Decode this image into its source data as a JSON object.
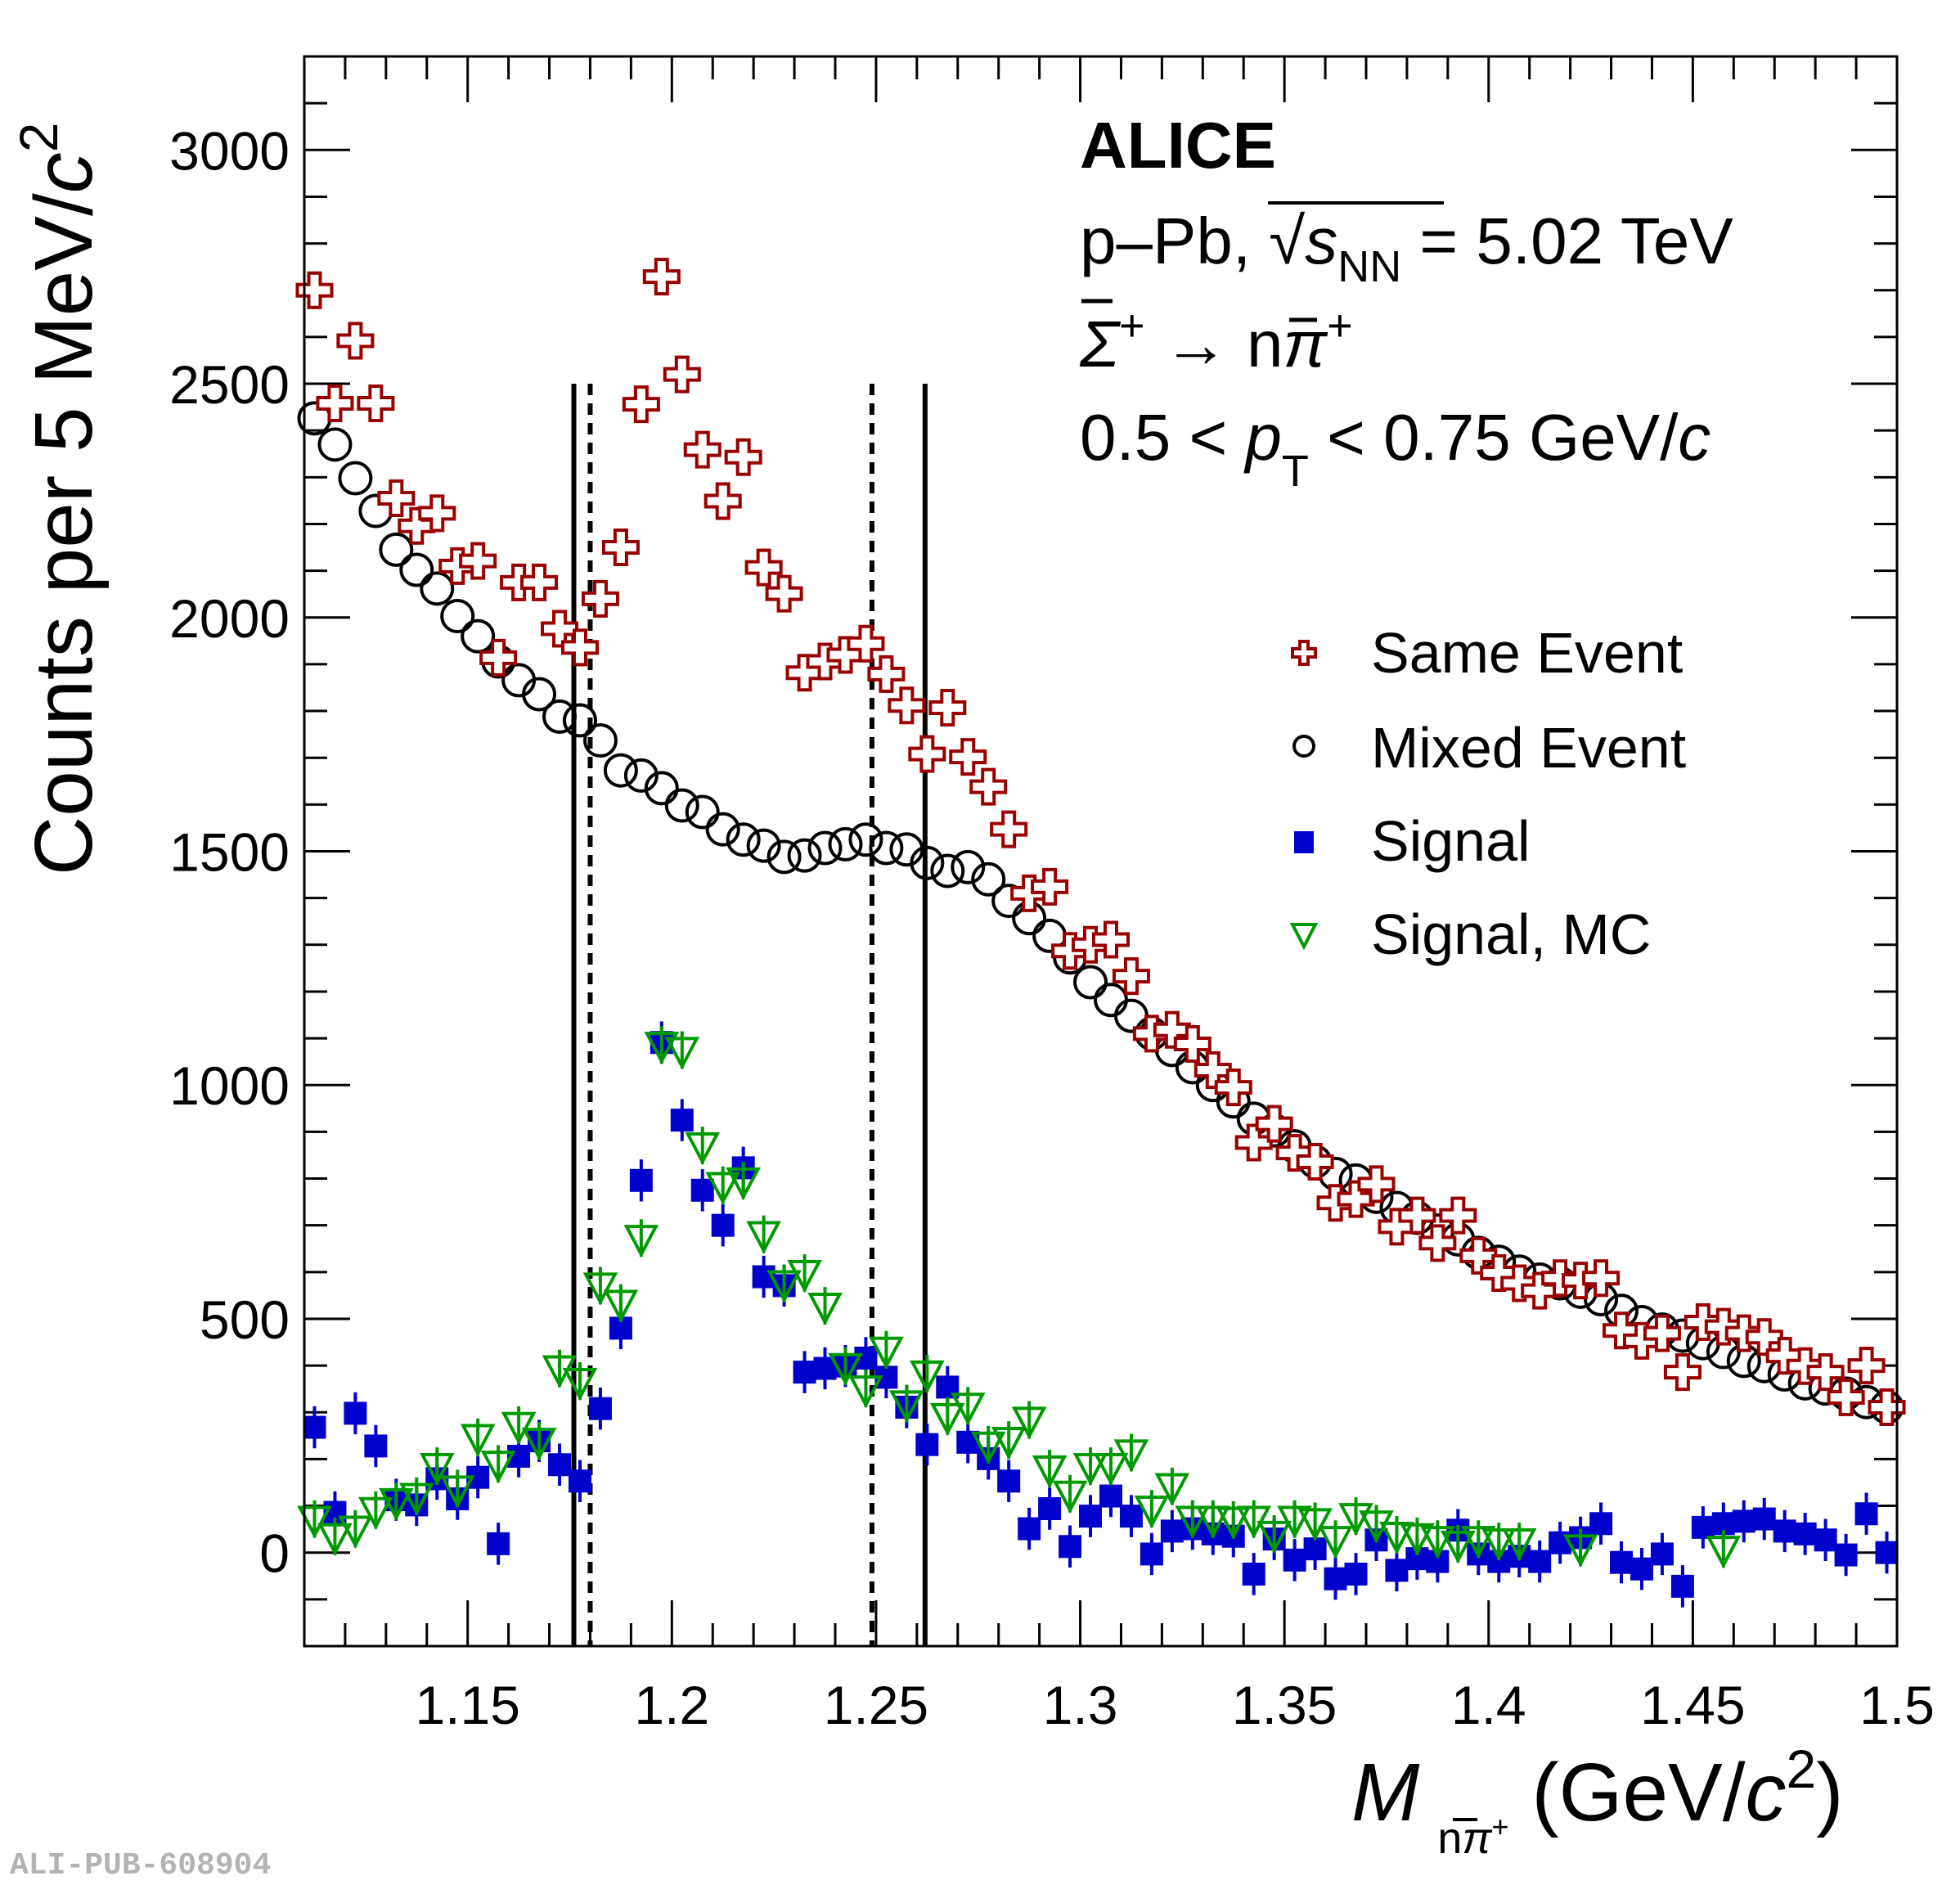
{
  "watermark": "ALI-PUB-608904",
  "annotations": {
    "experiment": "ALICE",
    "system_prefix": "p–Pb, ",
    "sqrt_symbol": "√",
    "energy_var": "s",
    "energy_sub": "NN",
    "energy_value": " = 5.02 TeV",
    "decay_parent": "Σ",
    "decay_parent_charge": "+",
    "decay_arrow": " → ",
    "decay_product_n": "n",
    "decay_product_pi": "π",
    "decay_product_charge": "+",
    "pt_prefix": "0.5 < ",
    "pt_var": "p",
    "pt_sub": "T",
    "pt_suffix_a": " < 0.75 GeV/",
    "pt_suffix_c": "c"
  },
  "axis_titles": {
    "x_var": "M",
    "x_sub_n": "n",
    "x_sub_pi": "π",
    "x_sub_charge": "+",
    "x_unit_a": " (GeV/",
    "x_unit_c": "c",
    "x_unit_exp": "2",
    "x_unit_b": ")",
    "y_text": "Counts per 5 MeV/",
    "y_c": "c",
    "y_exp": "2"
  },
  "chart_data": {
    "type": "scatter",
    "title": "",
    "xlabel": "M_{n̄π+} (GeV/c^2)",
    "ylabel": "Counts per 5 MeV/c^2",
    "xlim": [
      1.11,
      1.5
    ],
    "ylim": [
      -200,
      3200
    ],
    "x_major_ticks": [
      1.15,
      1.2,
      1.25,
      1.3,
      1.35,
      1.4,
      1.45,
      1.5
    ],
    "x_tick_labels": [
      "1.15",
      "1.2",
      "1.25",
      "1.3",
      "1.35",
      "1.4",
      "1.45",
      "1.5"
    ],
    "x_minor_step": 0.01,
    "y_major_ticks": [
      0,
      500,
      1000,
      1500,
      2000,
      2500,
      3000
    ],
    "y_tick_labels": [
      "0",
      "500",
      "1000",
      "1500",
      "2000",
      "2500",
      "3000"
    ],
    "y_minor_step": 100,
    "grid": false,
    "legend_position": "right",
    "bin_start": 1.1125,
    "bin_width": 0.005,
    "vertical_lines": [
      {
        "x": 1.176,
        "style": "solid",
        "y_top": 2500
      },
      {
        "x": 1.18,
        "style": "dashed",
        "y_top": 2500
      },
      {
        "x": 1.249,
        "style": "dashed",
        "y_top": 2500
      },
      {
        "x": 1.262,
        "style": "solid",
        "y_top": 2500
      }
    ],
    "series": [
      {
        "name": "Same Event",
        "marker": "open-cross",
        "color": "#990000",
        "values": [
          2700,
          2458,
          2592,
          2458,
          2255,
          2196,
          2223,
          2110,
          2121,
          1914,
          2075,
          2075,
          1976,
          1936,
          2040,
          2150,
          2456,
          2729,
          2520,
          2359,
          2249,
          2343,
          2107,
          2051,
          1882,
          1906,
          1920,
          1944,
          1879,
          1812,
          1708,
          1807,
          1702,
          1638,
          1547,
          1410,
          1424,
          1287,
          1300,
          1311,
          1233,
          1110,
          1118,
          1088,
          1032,
          995,
          877,
          917,
          855,
          836,
          748,
          756,
          788,
          697,
          721,
          662,
          721,
          635,
          598,
          576,
          560,
          587,
          582,
          587,
          475,
          453,
          469,
          386,
          493,
          483,
          469,
          461,
          421,
          399,
          386,
          332,
          400,
          311
        ],
        "errors": 40
      },
      {
        "name": "Mixed Event",
        "marker": "open-circle",
        "color": "#000000",
        "values": [
          2426,
          2370,
          2298,
          2228,
          2145,
          2102,
          2062,
          2003,
          1960,
          1906,
          1866,
          1836,
          1788,
          1780,
          1737,
          1673,
          1662,
          1635,
          1598,
          1584,
          1547,
          1525,
          1512,
          1488,
          1491,
          1507,
          1515,
          1525,
          1507,
          1504,
          1475,
          1458,
          1466,
          1440,
          1394,
          1357,
          1319,
          1273,
          1220,
          1182,
          1148,
          1110,
          1075,
          1038,
          1000,
          965,
          928,
          903,
          869,
          836,
          810,
          796,
          761,
          737,
          716,
          689,
          670,
          641,
          622,
          601,
          584,
          576,
          558,
          542,
          517,
          493,
          477,
          464,
          448,
          429,
          410,
          399,
          381,
          362,
          351,
          340,
          322,
          311
        ]
      },
      {
        "name": "Signal",
        "marker": "full-square",
        "color": "#0000cc",
        "values": [
          268,
          86,
          298,
          228,
          113,
          102,
          158,
          115,
          161,
          19,
          206,
          239,
          188,
          153,
          308,
          480,
          796,
          1091,
          925,
          775,
          700,
          823,
          590,
          571,
          386,
          394,
          399,
          416,
          375,
          311,
          231,
          354,
          236,
          201,
          153,
          51,
          94,
          13,
          78,
          121,
          78,
          -3,
          46,
          51,
          40,
          35,
          -46,
          29,
          -16,
          8,
          -56,
          -46,
          27,
          -38,
          -13,
          -19,
          48,
          -3,
          -19,
          -8,
          -19,
          21,
          32,
          62,
          -21,
          -35,
          -3,
          -72,
          54,
          62,
          67,
          72,
          46,
          40,
          27,
          -5,
          83,
          0
        ],
        "errors": 45
      },
      {
        "name": "Signal, MC",
        "marker": "open-triangle-down",
        "color": "#009900",
        "x": [
          1.1125,
          1.1175,
          1.1225,
          1.1275,
          1.1325,
          1.1375,
          1.1425,
          1.1475,
          1.1525,
          1.1575,
          1.1625,
          1.1675,
          1.1725,
          1.1775,
          1.1825,
          1.1875,
          1.1925,
          1.1975,
          1.2025,
          1.2075,
          1.2125,
          1.2175,
          1.2225,
          1.2275,
          1.2325,
          1.2375,
          1.2425,
          1.2475,
          1.2525,
          1.2575,
          1.2625,
          1.2675,
          1.2725,
          1.2775,
          1.2825,
          1.2875,
          1.2925,
          1.2975,
          1.3025,
          1.3075,
          1.3125,
          1.3175,
          1.3225,
          1.3275,
          1.3325,
          1.3375,
          1.3425,
          1.3475,
          1.3525,
          1.3575,
          1.3625,
          1.3675,
          1.3725,
          1.3775,
          1.3825,
          1.3875,
          1.3925,
          1.3975,
          1.4025,
          1.4075,
          1.4225,
          1.4575
        ],
        "values": [
          72,
          35,
          51,
          91,
          110,
          121,
          185,
          137,
          247,
          190,
          273,
          239,
          394,
          367,
          571,
          534,
          673,
          1086,
          1075,
          871,
          786,
          796,
          681,
          576,
          598,
          528,
          399,
          351,
          434,
          319,
          383,
          292,
          314,
          231,
          241,
          284,
          180,
          126,
          185,
          185,
          214,
          94,
          142,
          72,
          72,
          70,
          72,
          40,
          72,
          67,
          29,
          78,
          62,
          38,
          35,
          29,
          19,
          29,
          24,
          24,
          11,
          8
        ],
        "errors": 40
      }
    ]
  }
}
